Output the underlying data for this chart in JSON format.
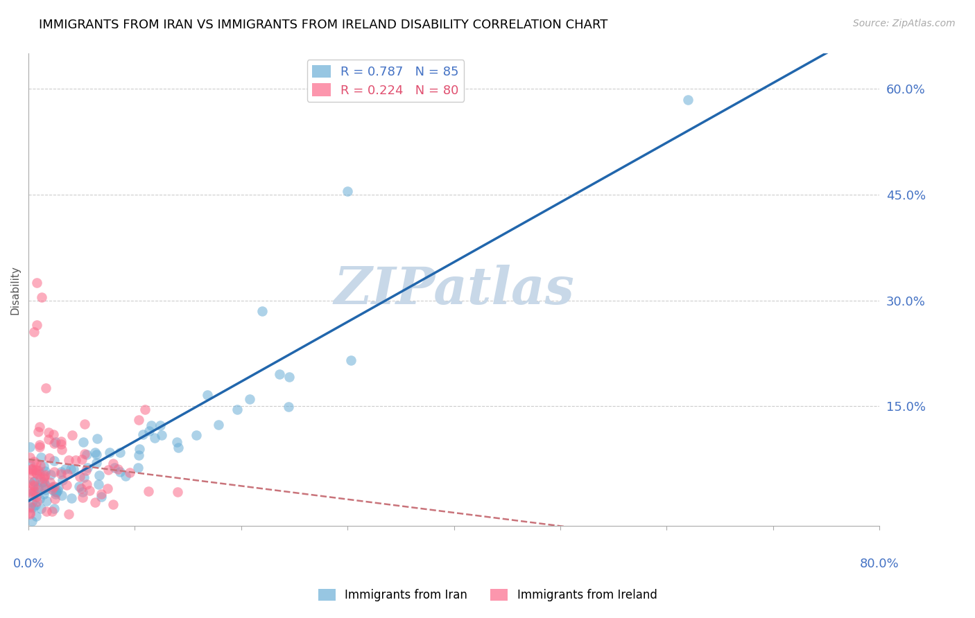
{
  "title": "IMMIGRANTS FROM IRAN VS IMMIGRANTS FROM IRELAND DISABILITY CORRELATION CHART",
  "source": "Source: ZipAtlas.com",
  "ylabel": "Disability",
  "right_yticks": [
    "60.0%",
    "45.0%",
    "30.0%",
    "15.0%"
  ],
  "right_ytick_vals": [
    0.6,
    0.45,
    0.3,
    0.15
  ],
  "xlim": [
    0.0,
    0.8
  ],
  "ylim": [
    -0.02,
    0.65
  ],
  "iran_R": 0.787,
  "iran_N": 85,
  "ireland_R": 0.224,
  "ireland_N": 80,
  "iran_color": "#6baed6",
  "ireland_color": "#fb6a8a",
  "iran_line_color": "#2166ac",
  "ireland_line_color": "#c9737a",
  "watermark": "ZIPatlas",
  "watermark_color": "#c8d8e8"
}
